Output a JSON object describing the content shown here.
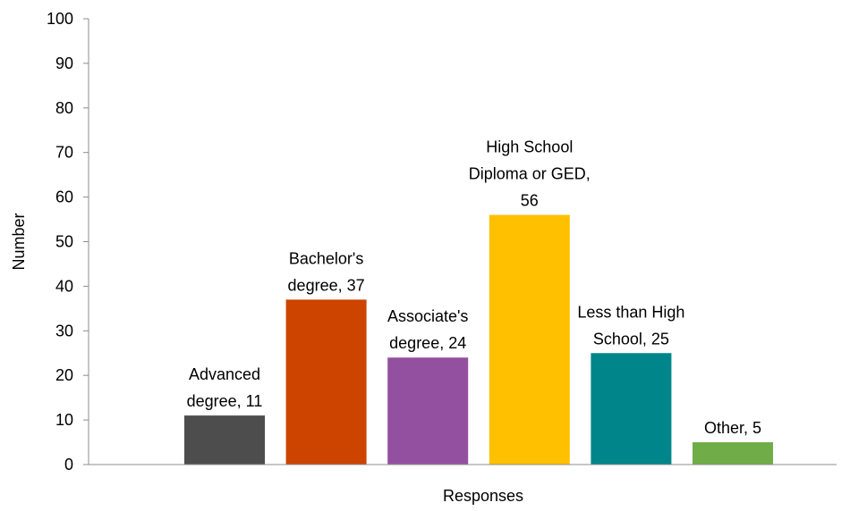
{
  "chart_data": {
    "type": "bar",
    "title": "",
    "xlabel": "Responses",
    "ylabel": "Number",
    "ylim": [
      0,
      100
    ],
    "yticks": [
      0,
      10,
      20,
      30,
      40,
      50,
      60,
      70,
      80,
      90,
      100
    ],
    "grid": false,
    "legend": "none",
    "categories": [
      "Advanced degree",
      "Bachelor's degree",
      "Associate's degree",
      "High School Diploma or GED",
      "Less than High School",
      "Other"
    ],
    "values": [
      11,
      37,
      24,
      56,
      25,
      5
    ],
    "colors": [
      "#4d4d4d",
      "#cc4400",
      "#9450a0",
      "#ffc000",
      "#00868a",
      "#70ad47"
    ],
    "data_labels": [
      [
        "Advanced",
        "degree, 11"
      ],
      [
        "Bachelor's",
        "degree, 37"
      ],
      [
        "Associate's",
        "degree, 24"
      ],
      [
        "High School",
        "Diploma or GED,",
        "56"
      ],
      [
        "Less than High",
        "School, 25"
      ],
      [
        "Other, 5"
      ]
    ]
  }
}
